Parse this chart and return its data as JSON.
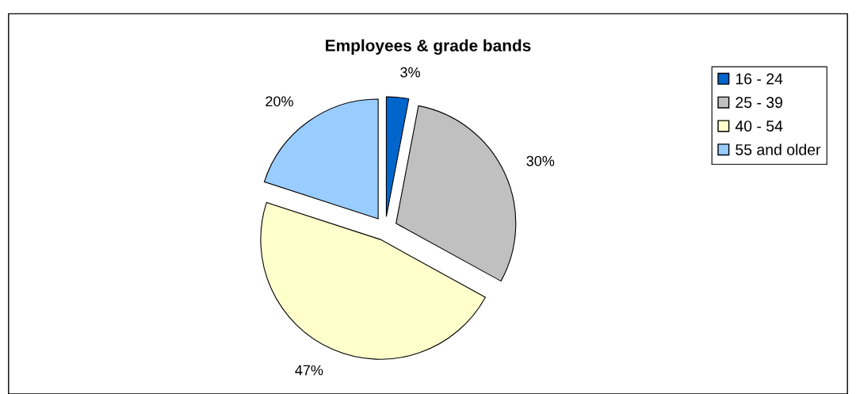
{
  "chart_data": {
    "type": "pie",
    "title": "Employees & grade bands",
    "categories": [
      "16 - 24",
      "25 - 39",
      "40 - 54",
      "55 and older"
    ],
    "values": [
      3,
      30,
      47,
      20
    ],
    "value_labels": [
      "3%",
      "30%",
      "47%",
      "20%"
    ],
    "colors": [
      "#0066cc",
      "#c0c0c0",
      "#ffffcc",
      "#99ccff"
    ],
    "legend": "right"
  }
}
